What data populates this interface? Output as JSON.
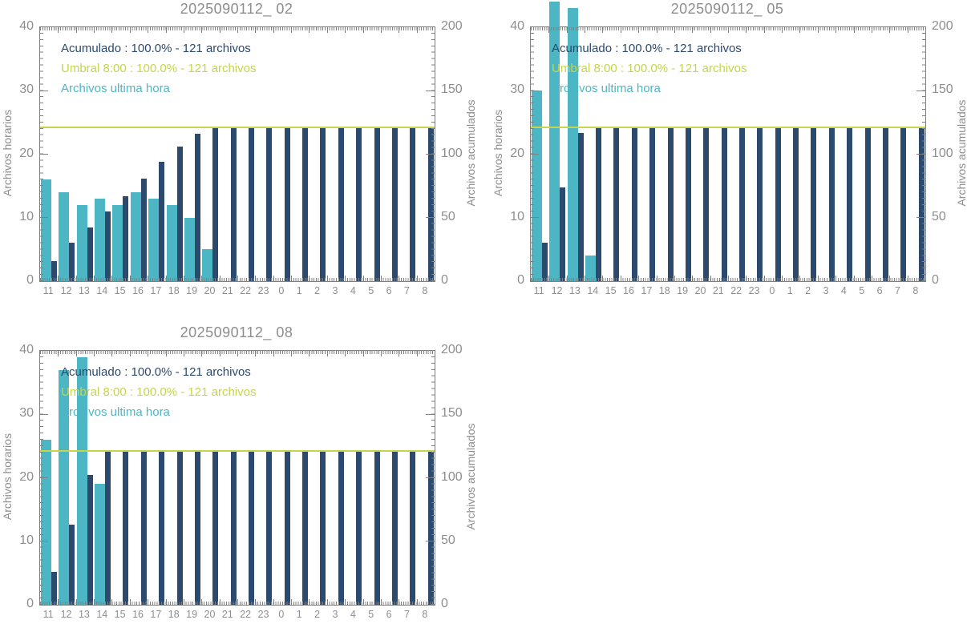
{
  "colors": {
    "hourly": "#4db6c5",
    "accumulated": "#2b4a6d",
    "threshold": "#c6d44e",
    "title_text": "#8e8e8e",
    "axis": "#808080",
    "tick_label": "#8e8e8e"
  },
  "chart_data": [
    {
      "type": "bar",
      "title": "2025090112_ 02",
      "ylabel_left": "Archivos horarios",
      "ylabel_right": "Archivos acumulados",
      "ylim_left": [
        0,
        40
      ],
      "ylim_right": [
        0,
        200
      ],
      "yticks_left": [
        0,
        10,
        20,
        30,
        40
      ],
      "yticks_right": [
        0,
        50,
        100,
        150,
        200
      ],
      "grid": false,
      "legend_position": "top-left",
      "categories": [
        "11",
        "12",
        "13",
        "14",
        "15",
        "16",
        "17",
        "18",
        "19",
        "20",
        "21",
        "22",
        "23",
        "0",
        "1",
        "2",
        "3",
        "4",
        "5",
        "6",
        "7",
        "8"
      ],
      "series": [
        {
          "name": "Archivos ultima hora",
          "axis": "left",
          "color_key": "hourly",
          "values": [
            16,
            14,
            12,
            13,
            12,
            14,
            13,
            12,
            10,
            5,
            0,
            0,
            0,
            0,
            0,
            0,
            0,
            0,
            0,
            0,
            0,
            0
          ]
        },
        {
          "name": "Acumulado",
          "axis": "right",
          "color_key": "accumulated",
          "values": [
            16,
            30,
            42,
            55,
            67,
            81,
            94,
            106,
            116,
            121,
            121,
            121,
            121,
            121,
            121,
            121,
            121,
            121,
            121,
            121,
            121,
            121
          ]
        }
      ],
      "threshold_line": {
        "label": "Umbral 8:00",
        "value": 121,
        "axis": "right",
        "color_key": "threshold"
      },
      "legend": [
        {
          "text": "Acumulado : 100.0% - 121 archivos",
          "color_key": "accumulated"
        },
        {
          "text": "Umbral 8:00 : 100.0% - 121 archivos",
          "color_key": "threshold"
        },
        {
          "text": "Archivos ultima hora",
          "color_key": "hourly"
        }
      ]
    },
    {
      "type": "bar",
      "title": "2025090112_ 05",
      "ylabel_left": "Archivos horarios",
      "ylabel_right": "Archivos acumulados",
      "ylim_left": [
        0,
        40
      ],
      "ylim_right": [
        0,
        200
      ],
      "yticks_left": [
        0,
        10,
        20,
        30,
        40
      ],
      "yticks_right": [
        0,
        50,
        100,
        150,
        200
      ],
      "grid": false,
      "legend_position": "top-left",
      "categories": [
        "11",
        "12",
        "13",
        "14",
        "15",
        "16",
        "17",
        "18",
        "19",
        "20",
        "21",
        "22",
        "23",
        "0",
        "1",
        "2",
        "3",
        "4",
        "5",
        "6",
        "7",
        "8"
      ],
      "series": [
        {
          "name": "Archivos ultima hora",
          "axis": "left",
          "color_key": "hourly",
          "values": [
            30,
            44,
            43,
            4,
            0,
            0,
            0,
            0,
            0,
            0,
            0,
            0,
            0,
            0,
            0,
            0,
            0,
            0,
            0,
            0,
            0,
            0
          ]
        },
        {
          "name": "Acumulado",
          "axis": "right",
          "color_key": "accumulated",
          "values": [
            30,
            74,
            117,
            121,
            121,
            121,
            121,
            121,
            121,
            121,
            121,
            121,
            121,
            121,
            121,
            121,
            121,
            121,
            121,
            121,
            121,
            121
          ]
        }
      ],
      "threshold_line": {
        "label": "Umbral 8:00",
        "value": 121,
        "axis": "right",
        "color_key": "threshold"
      },
      "legend": [
        {
          "text": "Acumulado : 100.0% - 121 archivos",
          "color_key": "accumulated"
        },
        {
          "text": "Umbral 8:00 : 100.0% - 121 archivos",
          "color_key": "threshold"
        },
        {
          "text": "Archivos ultima hora",
          "color_key": "hourly"
        }
      ]
    },
    {
      "type": "bar",
      "title": "2025090112_ 08",
      "ylabel_left": "Archivos horarios",
      "ylabel_right": "Archivos acumulados",
      "ylim_left": [
        0,
        40
      ],
      "ylim_right": [
        0,
        200
      ],
      "yticks_left": [
        0,
        10,
        20,
        30,
        40
      ],
      "yticks_right": [
        0,
        50,
        100,
        150,
        200
      ],
      "grid": false,
      "legend_position": "top-left",
      "categories": [
        "11",
        "12",
        "13",
        "14",
        "15",
        "16",
        "17",
        "18",
        "19",
        "20",
        "21",
        "22",
        "23",
        "0",
        "1",
        "2",
        "3",
        "4",
        "5",
        "6",
        "7",
        "8"
      ],
      "series": [
        {
          "name": "Archivos ultima hora",
          "axis": "left",
          "color_key": "hourly",
          "values": [
            26,
            37,
            39,
            19,
            0,
            0,
            0,
            0,
            0,
            0,
            0,
            0,
            0,
            0,
            0,
            0,
            0,
            0,
            0,
            0,
            0,
            0
          ]
        },
        {
          "name": "Acumulado",
          "axis": "right",
          "color_key": "accumulated",
          "values": [
            26,
            63,
            102,
            121,
            121,
            121,
            121,
            121,
            121,
            121,
            121,
            121,
            121,
            121,
            121,
            121,
            121,
            121,
            121,
            121,
            121,
            121
          ]
        }
      ],
      "threshold_line": {
        "label": "Umbral 8:00",
        "value": 121,
        "axis": "right",
        "color_key": "threshold"
      },
      "legend": [
        {
          "text": "Acumulado : 100.0% - 121 archivos",
          "color_key": "accumulated"
        },
        {
          "text": "Umbral 8:00 : 100.0% - 121 archivos",
          "color_key": "threshold"
        },
        {
          "text": "Archivos ultima hora",
          "color_key": "hourly"
        }
      ]
    }
  ]
}
